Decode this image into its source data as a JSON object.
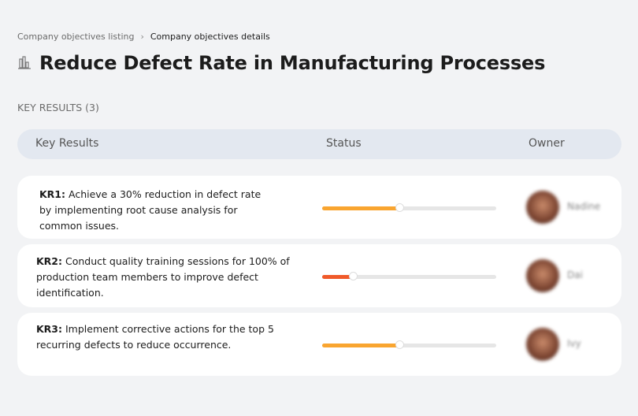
{
  "breadcrumb": {
    "items": [
      "Company objectives listing",
      "Company objectives details"
    ]
  },
  "page": {
    "title": "Reduce Defect Rate in Manufacturing Processes",
    "icon": "bar-chart-building-icon"
  },
  "key_results_label": "KEY RESULTS (3)",
  "table": {
    "headers": [
      "Key Results",
      "Status",
      "Owner"
    ],
    "rows": [
      {
        "id": "KR1:",
        "text": " Achieve a 30% reduction in defect rate by implementing root cause analysis for common issues.",
        "progress": 45,
        "color": "#f9a530",
        "owner": "Nadine"
      },
      {
        "id": "KR2:",
        "text": " Conduct quality training sessions for 100% of production team members to improve defect identification.",
        "progress": 18,
        "color": "#f05a2a",
        "owner": "Dai"
      },
      {
        "id": "KR3:",
        "text": " Implement corrective actions for the top 5 recurring defects to reduce occurrence.",
        "progress": 45,
        "color": "#f9a530",
        "owner": "Ivy"
      }
    ]
  }
}
